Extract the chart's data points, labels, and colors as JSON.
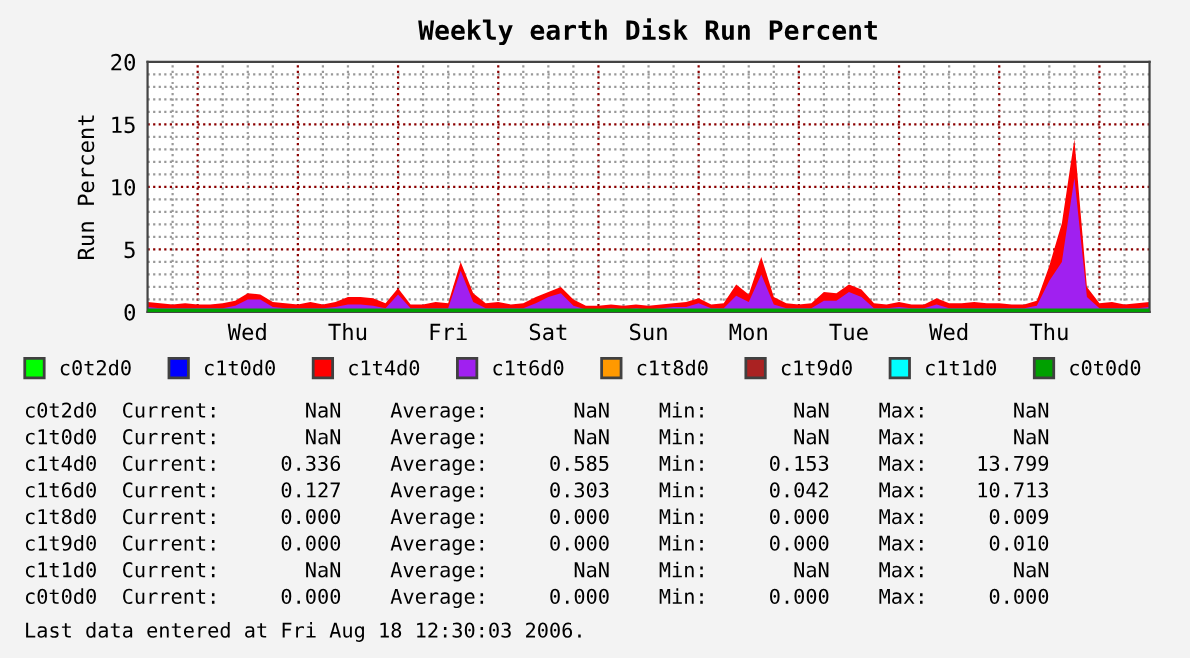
{
  "chart_data": {
    "type": "area",
    "title": "Weekly earth Disk Run Percent",
    "ylabel": "Run Percent",
    "categories": [
      null,
      null,
      null,
      null,
      null,
      null,
      null,
      null,
      "Wed",
      null,
      null,
      null,
      null,
      null,
      null,
      null,
      "Thu",
      null,
      null,
      null,
      null,
      null,
      null,
      null,
      "Fri",
      null,
      null,
      null,
      null,
      null,
      null,
      null,
      "Sat",
      null,
      null,
      null,
      null,
      null,
      null,
      null,
      "Sun",
      null,
      null,
      null,
      null,
      null,
      null,
      null,
      "Mon",
      null,
      null,
      null,
      null,
      null,
      null,
      null,
      "Tue",
      null,
      null,
      null,
      null,
      null,
      null,
      null,
      "Wed",
      null,
      null,
      null,
      null,
      null,
      null,
      null,
      "Thu",
      null,
      null,
      null,
      null,
      null,
      null,
      null,
      null
    ],
    "series": [
      {
        "name": "c0t2d0",
        "color": "#00ff00",
        "type": "line",
        "values": [
          null,
          null,
          null,
          null,
          null,
          null,
          null,
          null,
          null,
          null,
          null,
          null,
          null,
          null,
          null,
          null,
          null,
          null,
          null,
          null,
          null,
          null,
          null,
          null,
          null,
          null,
          null,
          null,
          null,
          null,
          null,
          null,
          null,
          null,
          null,
          null,
          null,
          null,
          null,
          null,
          null,
          null,
          null,
          null,
          null,
          null,
          null,
          null,
          null,
          null,
          null,
          null,
          null,
          null,
          null,
          null,
          null,
          null,
          null,
          null,
          null,
          null,
          null,
          null,
          null,
          null,
          null,
          null,
          null,
          null,
          null,
          null,
          null,
          null,
          null,
          null,
          null,
          null,
          null,
          null,
          null
        ]
      },
      {
        "name": "c1t0d0",
        "color": "#0000ff",
        "type": "line",
        "values": [
          null,
          null,
          null,
          null,
          null,
          null,
          null,
          null,
          null,
          null,
          null,
          null,
          null,
          null,
          null,
          null,
          null,
          null,
          null,
          null,
          null,
          null,
          null,
          null,
          null,
          null,
          null,
          null,
          null,
          null,
          null,
          null,
          null,
          null,
          null,
          null,
          null,
          null,
          null,
          null,
          null,
          null,
          null,
          null,
          null,
          null,
          null,
          null,
          null,
          null,
          null,
          null,
          null,
          null,
          null,
          null,
          null,
          null,
          null,
          null,
          null,
          null,
          null,
          null,
          null,
          null,
          null,
          null,
          null,
          null,
          null,
          null,
          null,
          null,
          null,
          null,
          null,
          null,
          null,
          null,
          null
        ]
      },
      {
        "name": "c1t4d0",
        "color": "#ff0000",
        "values": [
          0.8,
          0.7,
          0.6,
          0.7,
          0.6,
          0.6,
          0.7,
          0.9,
          1.5,
          1.4,
          0.8,
          0.7,
          0.6,
          0.8,
          0.6,
          0.8,
          1.2,
          1.2,
          1.1,
          0.7,
          1.9,
          0.6,
          0.6,
          0.8,
          0.7,
          4.0,
          1.5,
          0.7,
          0.8,
          0.6,
          0.7,
          1.2,
          1.6,
          2.0,
          1.0,
          0.5,
          0.5,
          0.6,
          0.5,
          0.6,
          0.5,
          0.6,
          0.7,
          0.8,
          1.1,
          0.6,
          0.7,
          2.2,
          1.4,
          4.4,
          1.2,
          0.7,
          0.6,
          0.7,
          1.6,
          1.5,
          2.2,
          1.8,
          0.7,
          0.6,
          0.8,
          0.6,
          0.6,
          1.1,
          0.7,
          0.7,
          0.8,
          0.7,
          0.7,
          0.6,
          0.6,
          0.9,
          3.7,
          7.1,
          13.8,
          2.0,
          0.7,
          0.8,
          0.6,
          0.7,
          0.8
        ]
      },
      {
        "name": "c1t6d0",
        "color": "#a020f0",
        "values": [
          0.4,
          0.3,
          0.3,
          0.3,
          0.3,
          0.3,
          0.3,
          0.5,
          1.0,
          1.0,
          0.4,
          0.3,
          0.3,
          0.3,
          0.3,
          0.4,
          0.6,
          0.6,
          0.5,
          0.3,
          1.4,
          0.3,
          0.3,
          0.3,
          0.3,
          3.3,
          0.8,
          0.3,
          0.3,
          0.3,
          0.3,
          0.7,
          1.2,
          1.5,
          0.5,
          0.2,
          0.2,
          0.3,
          0.2,
          0.3,
          0.2,
          0.3,
          0.4,
          0.4,
          0.7,
          0.3,
          0.3,
          1.3,
          0.8,
          3.0,
          0.6,
          0.3,
          0.3,
          0.3,
          0.9,
          0.9,
          1.6,
          1.2,
          0.3,
          0.3,
          0.4,
          0.3,
          0.3,
          0.6,
          0.3,
          0.3,
          0.3,
          0.3,
          0.3,
          0.3,
          0.3,
          0.5,
          2.5,
          4.0,
          10.7,
          1.2,
          0.3,
          0.3,
          0.3,
          0.3,
          0.4
        ]
      },
      {
        "name": "c1t8d0",
        "color": "#ff9900",
        "type": "line",
        "values": [
          null,
          null,
          null,
          null,
          null,
          null,
          null,
          null,
          null,
          null,
          null,
          null,
          null,
          null,
          null,
          null,
          null,
          null,
          null,
          null,
          null,
          null,
          null,
          null,
          null,
          null,
          null,
          null,
          null,
          null,
          null,
          null,
          null,
          null,
          null,
          null,
          null,
          null,
          null,
          null,
          null,
          null,
          null,
          null,
          null,
          null,
          null,
          null,
          null,
          null,
          null,
          null,
          null,
          null,
          null,
          null,
          null,
          null,
          null,
          null,
          null,
          null,
          null,
          null,
          null,
          null,
          null,
          null,
          null,
          null,
          null,
          null,
          null,
          null,
          null,
          null,
          null,
          null,
          null,
          null,
          null
        ]
      },
      {
        "name": "c1t9d0",
        "color": "#aa2222",
        "type": "line",
        "values": [
          null,
          null,
          null,
          null,
          null,
          null,
          null,
          null,
          null,
          null,
          null,
          null,
          null,
          null,
          null,
          null,
          null,
          null,
          null,
          null,
          null,
          null,
          null,
          null,
          null,
          null,
          null,
          null,
          null,
          null,
          null,
          null,
          null,
          null,
          null,
          null,
          null,
          null,
          null,
          null,
          null,
          null,
          null,
          null,
          null,
          null,
          null,
          null,
          null,
          null,
          null,
          null,
          null,
          null,
          null,
          null,
          null,
          null,
          null,
          null,
          null,
          null,
          null,
          null,
          null,
          null,
          null,
          null,
          null,
          null,
          null,
          null,
          null,
          null,
          null,
          null,
          null,
          null,
          null,
          null,
          null
        ]
      },
      {
        "name": "c1t1d0",
        "color": "#00ffff",
        "type": "line",
        "values": [
          null,
          null,
          null,
          null,
          null,
          null,
          null,
          null,
          null,
          null,
          null,
          null,
          null,
          null,
          null,
          null,
          null,
          null,
          null,
          null,
          null,
          null,
          null,
          null,
          null,
          null,
          null,
          null,
          null,
          null,
          null,
          null,
          null,
          null,
          null,
          null,
          null,
          null,
          null,
          null,
          null,
          null,
          null,
          null,
          null,
          null,
          null,
          null,
          null,
          null,
          null,
          null,
          null,
          null,
          null,
          null,
          null,
          null,
          null,
          null,
          null,
          null,
          null,
          null,
          null,
          null,
          null,
          null,
          null,
          null,
          null,
          null,
          null,
          null,
          null,
          null,
          null,
          null,
          null,
          null,
          null
        ]
      },
      {
        "name": "c0t0d0",
        "color": "#00a000",
        "type": "line",
        "values": [
          0,
          0,
          0,
          0,
          0,
          0,
          0,
          0,
          0,
          0,
          0,
          0,
          0,
          0,
          0,
          0,
          0,
          0,
          0,
          0,
          0,
          0,
          0,
          0,
          0,
          0,
          0,
          0,
          0,
          0,
          0,
          0,
          0,
          0,
          0,
          0,
          0,
          0,
          0,
          0,
          0,
          0,
          0,
          0,
          0,
          0,
          0,
          0,
          0,
          0,
          0,
          0,
          0,
          0,
          0,
          0,
          0,
          0,
          0,
          0,
          0,
          0,
          0,
          0,
          0,
          0,
          0,
          0,
          0,
          0,
          0,
          0,
          0,
          0,
          0,
          0,
          0,
          0,
          0,
          0,
          0
        ]
      }
    ],
    "ylim": [
      0,
      20
    ],
    "yticks": [
      0,
      {
        "value": 1,
        "label": null
      },
      {
        "value": 2,
        "label": null
      },
      {
        "value": 3,
        "label": null
      },
      {
        "value": 4,
        "label": null
      },
      5,
      {
        "value": 6,
        "label": null
      },
      {
        "value": 7,
        "label": null
      },
      {
        "value": 8,
        "label": null
      },
      {
        "value": 9,
        "label": null
      },
      10,
      {
        "value": 11,
        "label": null
      },
      {
        "value": 12,
        "label": null
      },
      {
        "value": 13,
        "label": null
      },
      {
        "value": 14,
        "label": null
      },
      15,
      {
        "value": 16,
        "label": null
      },
      {
        "value": 17,
        "label": null
      },
      {
        "value": 18,
        "label": null
      },
      {
        "value": 19,
        "label": null
      },
      20
    ],
    "grid": true,
    "legend": "bottom",
    "annotations": [
      "c0t2d0  Current:       NaN    Average:       NaN    Min:       NaN    Max:       NaN",
      "c1t0d0  Current:       NaN    Average:       NaN    Min:       NaN    Max:       NaN",
      "c1t4d0  Current:     0.336    Average:     0.585    Min:     0.153    Max:    13.799",
      "c1t6d0  Current:     0.127    Average:     0.303    Min:     0.042    Max:    10.713",
      "c1t8d0  Current:     0.000    Average:     0.000    Min:     0.000    Max:     0.009",
      "c1t9d0  Current:     0.000    Average:     0.000    Min:     0.000    Max:     0.010",
      "c1t1d0  Current:       NaN    Average:       NaN    Min:       NaN    Max:       NaN",
      "c0t0d0  Current:     0.000    Average:     0.000    Min:     0.000    Max:     0.000",
      "Last data entered at Fri Aug 18 12:30:03 2006."
    ]
  }
}
